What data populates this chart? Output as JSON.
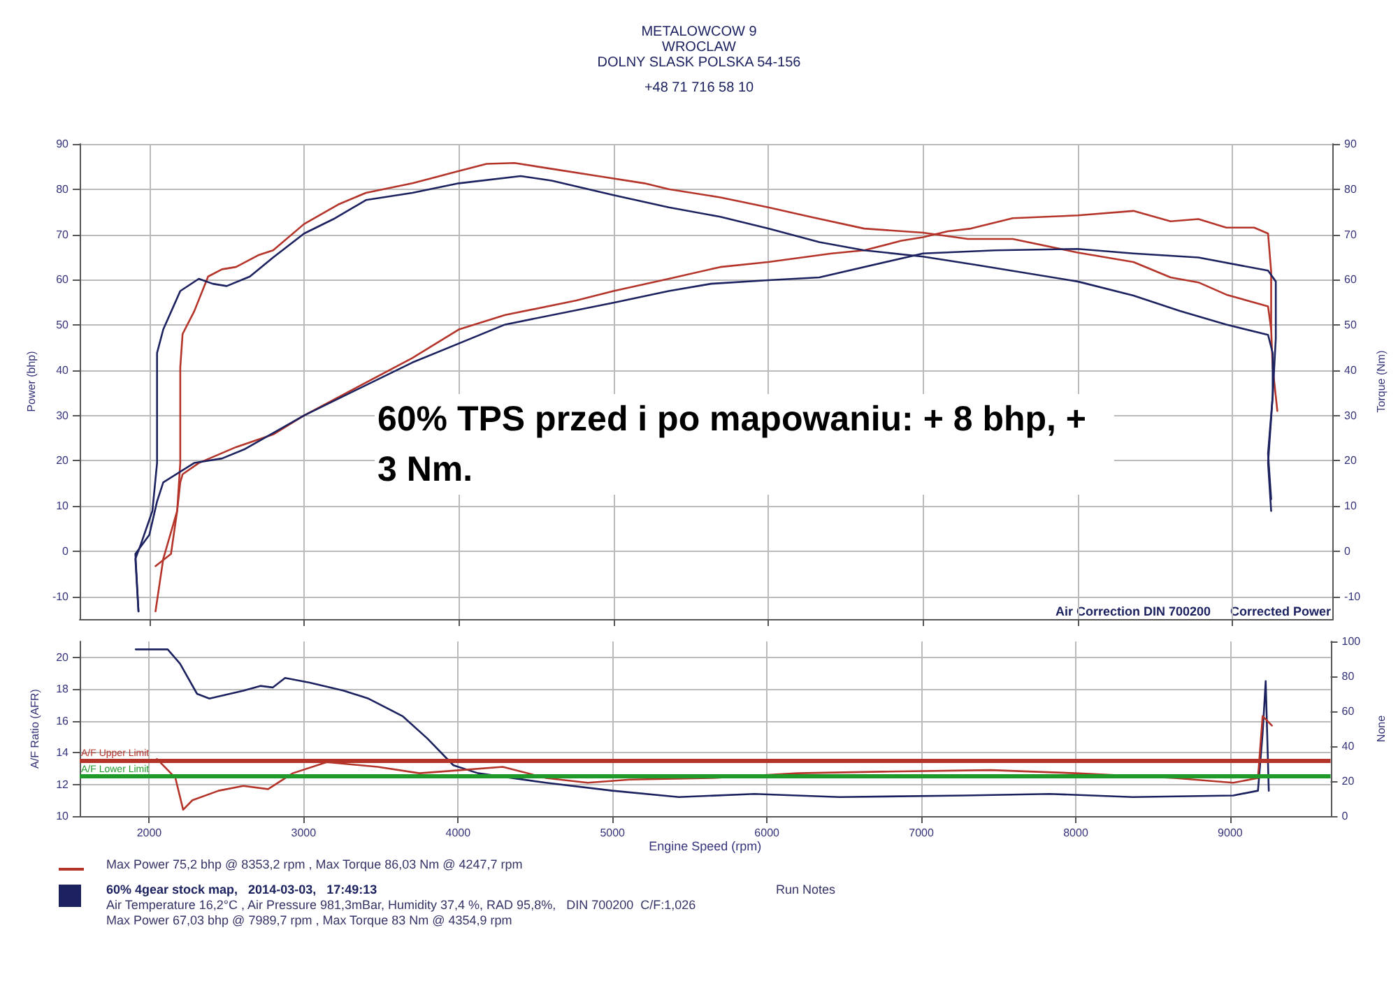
{
  "chart_data": [
    {
      "type": "line",
      "ylabel": "Power (bhp)",
      "y2label": "Torque (Nm)",
      "xlim": [
        1550,
        9650
      ],
      "xticks": [
        2000,
        3000,
        4000,
        5000,
        6000,
        7000,
        8000,
        9000
      ],
      "ylim": [
        -15,
        90
      ],
      "yticks": [
        -10,
        0,
        10,
        20,
        30,
        40,
        50,
        60,
        70,
        80,
        90
      ],
      "y2lim": [
        -15,
        90
      ],
      "y2ticks": [
        -10,
        0,
        10,
        20,
        30,
        40,
        50,
        60,
        70,
        80,
        90
      ],
      "grid": true,
      "marker": "none",
      "tick_labels": "y",
      "annotations": [
        "METALOWCOW 9",
        "WROCLAW",
        "DOLNY SLASK POLSKA 54-156",
        "+48 71 716 58 10",
        "60% TPS przed i po mapowaniu: + 8 bhp, + 3 Nm.",
        "Air Correction DIN 700200",
        "Corrected Power"
      ],
      "series": [
        {
          "color": "#b5342a",
          "x": [
            2040,
            2090,
            2180,
            2200,
            2215,
            2320,
            2560,
            2800,
            3000,
            3700,
            4000,
            4300,
            4760,
            5000,
            5357,
            5690,
            6000,
            6410,
            6620,
            6860,
            7000,
            7160,
            7310,
            7580,
            8000,
            8360,
            8600,
            8780,
            8960,
            9140,
            9230,
            9250,
            9250,
            9260,
            9290
          ],
          "values": [
            -13.3,
            -1.7,
            8.9,
            15.2,
            17,
            19.5,
            23,
            25.8,
            30,
            42.7,
            49,
            52.2,
            55.4,
            57.5,
            60.2,
            62.8,
            63.9,
            65.8,
            66.5,
            68.6,
            69.4,
            70.7,
            71.3,
            73.6,
            74.2,
            75.2,
            72.9,
            73.4,
            71.5,
            71.5,
            70.2,
            61.8,
            49,
            40.6,
            31
          ]
        },
        {
          "color": "#b5342a",
          "x": [
            2040,
            2140,
            2180,
            2200,
            2200,
            2215,
            2290,
            2380,
            2470,
            2560,
            2710,
            2800,
            3000,
            3220,
            3400,
            3700,
            4000,
            4180,
            4360,
            4600,
            4900,
            5200,
            5357,
            5690,
            6000,
            6270,
            6620,
            7000,
            7290,
            7580,
            8000,
            8360,
            8600,
            8780,
            8960,
            9230,
            9250
          ],
          "values": [
            -3.3,
            -0.6,
            8.9,
            19.5,
            40.6,
            48,
            53,
            60.7,
            62.3,
            62.8,
            65.5,
            66.5,
            72.3,
            76.6,
            79.2,
            81.3,
            84,
            85.6,
            85.8,
            84.5,
            82.9,
            81.3,
            80,
            78.2,
            76,
            73.9,
            71.3,
            70.4,
            69,
            69,
            66,
            63.9,
            60.5,
            59.4,
            56.7,
            54.1,
            49
          ]
        },
        {
          "color": "#1c2260",
          "x": [
            1930,
            1910,
            2000,
            2050,
            2090,
            2290,
            2470,
            2620,
            3000,
            3700,
            4300,
            5000,
            5357,
            5630,
            6000,
            6330,
            7000,
            7470,
            8000,
            8360,
            8780,
            9230,
            9280,
            9280,
            9260,
            9230,
            9250
          ],
          "values": [
            -13.3,
            -0.6,
            3.6,
            11,
            15.2,
            19.5,
            20.5,
            22.6,
            30,
            41.7,
            50.1,
            54.9,
            57.5,
            59.1,
            59.9,
            60.5,
            65.8,
            66.5,
            66.8,
            65.8,
            64.9,
            62,
            59.6,
            47,
            34.3,
            21.6,
            11.5
          ]
        },
        {
          "color": "#1c2260",
          "x": [
            1930,
            1910,
            1945,
            2020,
            2050,
            2050,
            2090,
            2200,
            2320,
            2410,
            2500,
            2650,
            2800,
            3000,
            3190,
            3400,
            3700,
            4000,
            4400,
            4600,
            5000,
            5357,
            5690,
            6000,
            6330,
            6620,
            7000,
            7340,
            8000,
            8360,
            8660,
            8960,
            9230,
            9260,
            9260,
            9230,
            9250
          ],
          "values": [
            -13.3,
            -1.7,
            1.5,
            8.9,
            19.5,
            43.8,
            49,
            57.5,
            60.2,
            59.1,
            58.6,
            60.7,
            64.9,
            70.2,
            73.4,
            77.6,
            79.2,
            81.3,
            82.9,
            81.9,
            78.7,
            76,
            73.9,
            71.3,
            68.3,
            66.5,
            65.1,
            63.3,
            59.6,
            56.5,
            53.1,
            50.1,
            47.8,
            43.8,
            34.3,
            19.5,
            8.9
          ]
        }
      ]
    },
    {
      "type": "line",
      "xlabel": "Engine Speed (rpm)",
      "ylabel": "A/F Ratio (AFR)",
      "y2label": "None",
      "xlim": [
        1550,
        9650
      ],
      "xticks": [
        2000,
        3000,
        4000,
        5000,
        6000,
        7000,
        8000,
        9000
      ],
      "ylim": [
        10,
        21
      ],
      "yticks": [
        10,
        12,
        14,
        16,
        18,
        20
      ],
      "y2lim": [
        0,
        100
      ],
      "y2ticks": [
        0,
        20,
        40,
        60,
        80,
        100
      ],
      "grid": true,
      "marker": "none",
      "ref_lines": [
        {
          "axis": "y",
          "value": 13.5,
          "label": "A/F Upper Limit",
          "color": "#b5342a"
        },
        {
          "axis": "y",
          "value": 12.5,
          "label": "A/F Lower Limit",
          "color": "#1f9a2a"
        }
      ],
      "annotations": [
        "Max Power 75,2 bhp @ 8353,2 rpm , Max Torque 86,03 Nm @ 4247,7 rpm",
        "60% 4gear stock map,   2014-03-03,   17:49:13",
        "Run Notes",
        "Air Temperature 16,2°C , Air Pressure 981,3mBar, Humidity 37,4 %, RAD 95,8%,   DIN 700200  C/F:1,026",
        "Max Power 67,03 bhp @ 7989,7 rpm , Max Torque 83 Nm @ 4354,9 rpm"
      ],
      "series": [
        {
          "color": "#1c2260",
          "x": [
            1913,
            2120,
            2200,
            2310,
            2390,
            2610,
            2720,
            2800,
            2880,
            3040,
            3260,
            3420,
            3640,
            3800,
            3970,
            4130,
            4570,
            5000,
            5430,
            5920,
            6470,
            7280,
            7830,
            8370,
            9020,
            9180,
            9210,
            9230,
            9250
          ],
          "values": [
            20.5,
            20.5,
            19.6,
            17.7,
            17.4,
            17.9,
            18.2,
            18.1,
            18.7,
            18.4,
            17.9,
            17.4,
            16.3,
            14.9,
            13.2,
            12.7,
            12.1,
            11.6,
            11.2,
            11.4,
            11.2,
            11.3,
            11.4,
            11.2,
            11.3,
            11.6,
            15.2,
            18.5,
            11.6
          ]
        },
        {
          "color": "#b5342a",
          "x": [
            2050,
            2170,
            2220,
            2280,
            2450,
            2610,
            2770,
            2930,
            3150,
            3480,
            3750,
            4020,
            4290,
            4570,
            4840,
            5110,
            5650,
            6200,
            6740,
            7450,
            8000,
            8640,
            9020,
            9180,
            9210,
            9240,
            9270
          ],
          "values": [
            13.6,
            12.4,
            10.4,
            11,
            11.6,
            11.9,
            11.7,
            12.7,
            13.4,
            13.1,
            12.7,
            12.9,
            13.1,
            12.4,
            12.1,
            12.3,
            12.4,
            12.7,
            12.8,
            12.9,
            12.7,
            12.4,
            12.1,
            12.4,
            16.3,
            16,
            15.7
          ]
        }
      ]
    }
  ]
}
